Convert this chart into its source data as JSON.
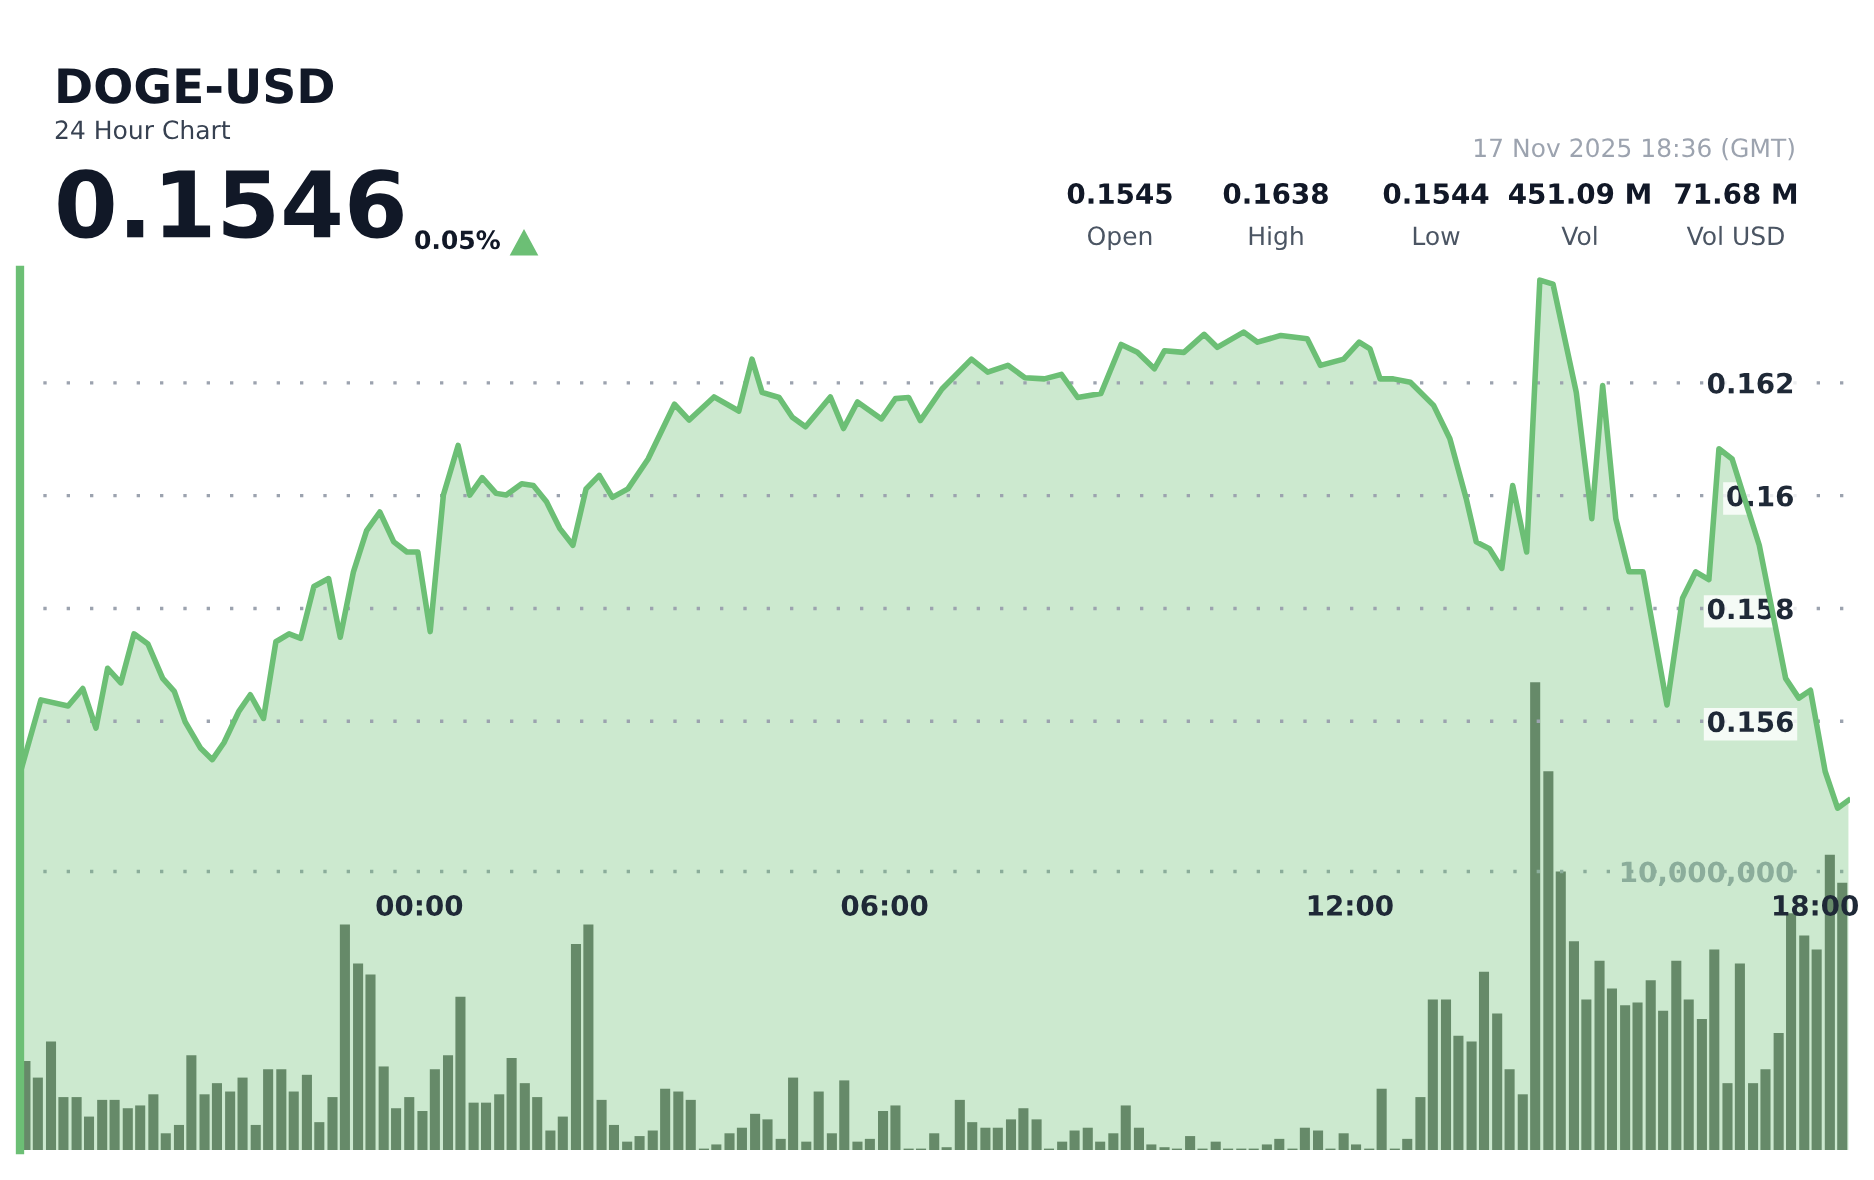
{
  "chart_data": {
    "type": "area",
    "title": "DOGE-USD",
    "subtitle": "24 Hour Chart",
    "annotations": [
      "0.1546",
      "0.05%",
      "17 Nov 2025 18:36 (GMT)",
      "0.1545",
      "Open",
      "0.1638",
      "High",
      "0.1544",
      "Low",
      "451.09 M",
      "Vol",
      "71.68 M",
      "Vol USD"
    ],
    "xlim": [
      -5.15,
      18.45
    ],
    "xticks": [
      {
        "value": 0,
        "label": "00:00"
      },
      {
        "value": 6,
        "label": "06:00"
      },
      {
        "value": 12,
        "label": "12:00"
      },
      {
        "value": 18,
        "label": "18:00"
      }
    ],
    "ylim": [
      0.1484,
      0.164
    ],
    "yticks": [
      0.156,
      0.158,
      0.16,
      0.162
    ],
    "y2lim": [
      0,
      31600000
    ],
    "y2ticks": [
      {
        "value": 10000000,
        "label": "10,000,000"
      }
    ],
    "grid": "y",
    "series": [
      {
        "color": "#6cbf75",
        "x": [
          -5.13,
          -4.88,
          -4.53,
          -4.34,
          -4.17,
          -4.02,
          -3.85,
          -3.68,
          -3.5,
          -3.31,
          -3.16,
          -3.02,
          -2.82,
          -2.67,
          -2.52,
          -2.33,
          -2.18,
          -2.01,
          -1.85,
          -1.68,
          -1.53,
          -1.36,
          -1.17,
          -1.02,
          -0.85,
          -0.68,
          -0.51,
          -0.33,
          -0.16,
          -0.02,
          0.14,
          0.31,
          0.5,
          0.65,
          0.81,
          0.99,
          1.12,
          1.32,
          1.47,
          1.64,
          1.81,
          1.98,
          2.15,
          2.32,
          2.49,
          2.69,
          2.95,
          3.29,
          3.48,
          3.8,
          4.12,
          4.29,
          4.42,
          4.64,
          4.81,
          4.98,
          5.3,
          5.47,
          5.65,
          5.96,
          6.14,
          6.31,
          6.46,
          6.74,
          7.12,
          7.33,
          7.59,
          7.81,
          8.06,
          8.28,
          8.49,
          8.79,
          9.05,
          9.26,
          9.48,
          9.61,
          9.86,
          10.12,
          10.29,
          10.63,
          10.81,
          11.11,
          11.45,
          11.62,
          11.92,
          12.12,
          12.26,
          12.39,
          12.56,
          12.78,
          13.08,
          13.29,
          13.5,
          13.63,
          13.8,
          13.96,
          14.1,
          14.28,
          14.45,
          14.62,
          14.92,
          15.12,
          15.26,
          15.43,
          15.6,
          15.78,
          16.09,
          16.29,
          16.46,
          16.63,
          16.76,
          16.93,
          17.28,
          17.62,
          17.79,
          17.94,
          18.13,
          18.29,
          18.43
        ],
        "values": [
          0.15517,
          0.15638,
          0.15627,
          0.15658,
          0.15588,
          0.15694,
          0.15668,
          0.15755,
          0.15737,
          0.15676,
          0.15653,
          0.15599,
          0.15552,
          0.15532,
          0.15562,
          0.15617,
          0.15647,
          0.15605,
          0.15741,
          0.15755,
          0.15747,
          0.15839,
          0.15853,
          0.15749,
          0.15865,
          0.15938,
          0.15971,
          0.15918,
          0.159,
          0.159,
          0.15759,
          0.16001,
          0.16089,
          0.16001,
          0.16032,
          0.16004,
          0.16001,
          0.16021,
          0.16018,
          0.15989,
          0.15942,
          0.15912,
          0.16012,
          0.16036,
          0.15997,
          0.16012,
          0.16065,
          0.16162,
          0.16134,
          0.16175,
          0.1615,
          0.16242,
          0.16183,
          0.16174,
          0.16139,
          0.16122,
          0.16175,
          0.16119,
          0.16166,
          0.16136,
          0.16172,
          0.16174,
          0.16133,
          0.16189,
          0.16242,
          0.16219,
          0.16231,
          0.16209,
          0.16207,
          0.16215,
          0.16174,
          0.16181,
          0.16268,
          0.16254,
          0.16225,
          0.16257,
          0.16254,
          0.16286,
          0.16263,
          0.1629,
          0.16272,
          0.16284,
          0.16278,
          0.16231,
          0.16242,
          0.16272,
          0.1626,
          0.16207,
          0.16207,
          0.16201,
          0.1616,
          0.16101,
          0.15995,
          0.15918,
          0.15906,
          0.15871,
          0.16018,
          0.159,
          0.16382,
          0.16375,
          0.16183,
          0.15959,
          0.16195,
          0.15959,
          0.15865,
          0.15865,
          0.15629,
          0.15818,
          0.15865,
          0.15851,
          0.16083,
          0.16065,
          0.15912,
          0.15676,
          0.15641,
          0.15655,
          0.15511,
          0.15446,
          0.1546
        ]
      },
      {
        "type": "bar",
        "axis": "y2",
        "color": "#636e63",
        "x": [
          -5.08,
          -4.92,
          -4.75,
          -4.59,
          -4.42,
          -4.26,
          -4.09,
          -3.93,
          -3.76,
          -3.6,
          -3.43,
          -3.27,
          -3.1,
          -2.94,
          -2.77,
          -2.61,
          -2.44,
          -2.28,
          -2.11,
          -1.95,
          -1.78,
          -1.62,
          -1.45,
          -1.29,
          -1.12,
          -0.96,
          -0.79,
          -0.63,
          -0.46,
          -0.3,
          -0.13,
          0.04,
          0.2,
          0.37,
          0.53,
          0.7,
          0.86,
          1.03,
          1.19,
          1.36,
          1.52,
          1.69,
          1.85,
          2.02,
          2.18,
          2.35,
          2.51,
          2.68,
          2.84,
          3.01,
          3.17,
          3.34,
          3.5,
          3.67,
          3.83,
          4.0,
          4.16,
          4.33,
          4.49,
          4.66,
          4.82,
          4.99,
          5.15,
          5.32,
          5.48,
          5.65,
          5.81,
          5.98,
          6.14,
          6.31,
          6.47,
          6.64,
          6.8,
          6.97,
          7.13,
          7.3,
          7.46,
          7.63,
          7.79,
          7.96,
          8.12,
          8.29,
          8.45,
          8.62,
          8.78,
          8.95,
          9.11,
          9.28,
          9.44,
          9.61,
          9.77,
          9.94,
          10.1,
          10.27,
          10.43,
          10.6,
          10.76,
          10.93,
          11.09,
          11.26,
          11.42,
          11.59,
          11.75,
          11.92,
          12.08,
          12.25,
          12.41,
          12.58,
          12.74,
          12.91,
          13.07,
          13.24,
          13.4,
          13.57,
          13.73,
          13.9,
          14.06,
          14.23,
          14.39,
          14.56,
          14.72,
          14.89,
          15.05,
          15.22,
          15.38,
          15.55,
          15.71,
          15.88,
          16.04,
          16.21,
          16.37,
          16.54,
          16.7,
          16.87,
          17.03,
          17.2,
          17.36,
          17.53,
          17.69,
          17.86,
          18.02,
          18.19,
          18.35
        ],
        "values": [
          3200000,
          2600000,
          3900000,
          1900000,
          1900000,
          1200000,
          1800000,
          1800000,
          1500000,
          1600000,
          2000000,
          600000,
          900000,
          3400000,
          2000000,
          2400000,
          2100000,
          2600000,
          900000,
          2900000,
          2900000,
          2100000,
          2700000,
          1000000,
          1900000,
          8100000,
          6700000,
          6300000,
          3000000,
          1500000,
          1900000,
          1400000,
          2900000,
          3400000,
          5500000,
          1700000,
          1700000,
          2000000,
          3300000,
          2400000,
          1900000,
          700000,
          1200000,
          7400000,
          8100000,
          1800000,
          900000,
          300000,
          500000,
          700000,
          2200000,
          2100000,
          1800000,
          50000,
          200000,
          600000,
          800000,
          1300000,
          1100000,
          400000,
          2600000,
          300000,
          2100000,
          600000,
          2500000,
          300000,
          400000,
          1400000,
          1600000,
          50000,
          50000,
          600000,
          100000,
          1800000,
          1000000,
          800000,
          800000,
          1100000,
          1500000,
          1100000,
          50000,
          300000,
          700000,
          800000,
          300000,
          600000,
          1600000,
          800000,
          200000,
          100000,
          50000,
          500000,
          50000,
          300000,
          50000,
          50000,
          50000,
          200000,
          400000,
          50000,
          800000,
          700000,
          50000,
          600000,
          200000,
          50000,
          2200000,
          50000,
          400000,
          1900000,
          5400000,
          5400000,
          4100000,
          3900000,
          6400000,
          4900000,
          2900000,
          2000000,
          16800000,
          13600000,
          10000000,
          7500000,
          5400000,
          6800000,
          5800000,
          5200000,
          5300000,
          6100000,
          5000000,
          6800000,
          5400000,
          4700000,
          7200000,
          2400000,
          6700000,
          2400000,
          2900000,
          4200000,
          8500000,
          7700000,
          7200000,
          10600000,
          9600000
        ]
      }
    ]
  }
}
